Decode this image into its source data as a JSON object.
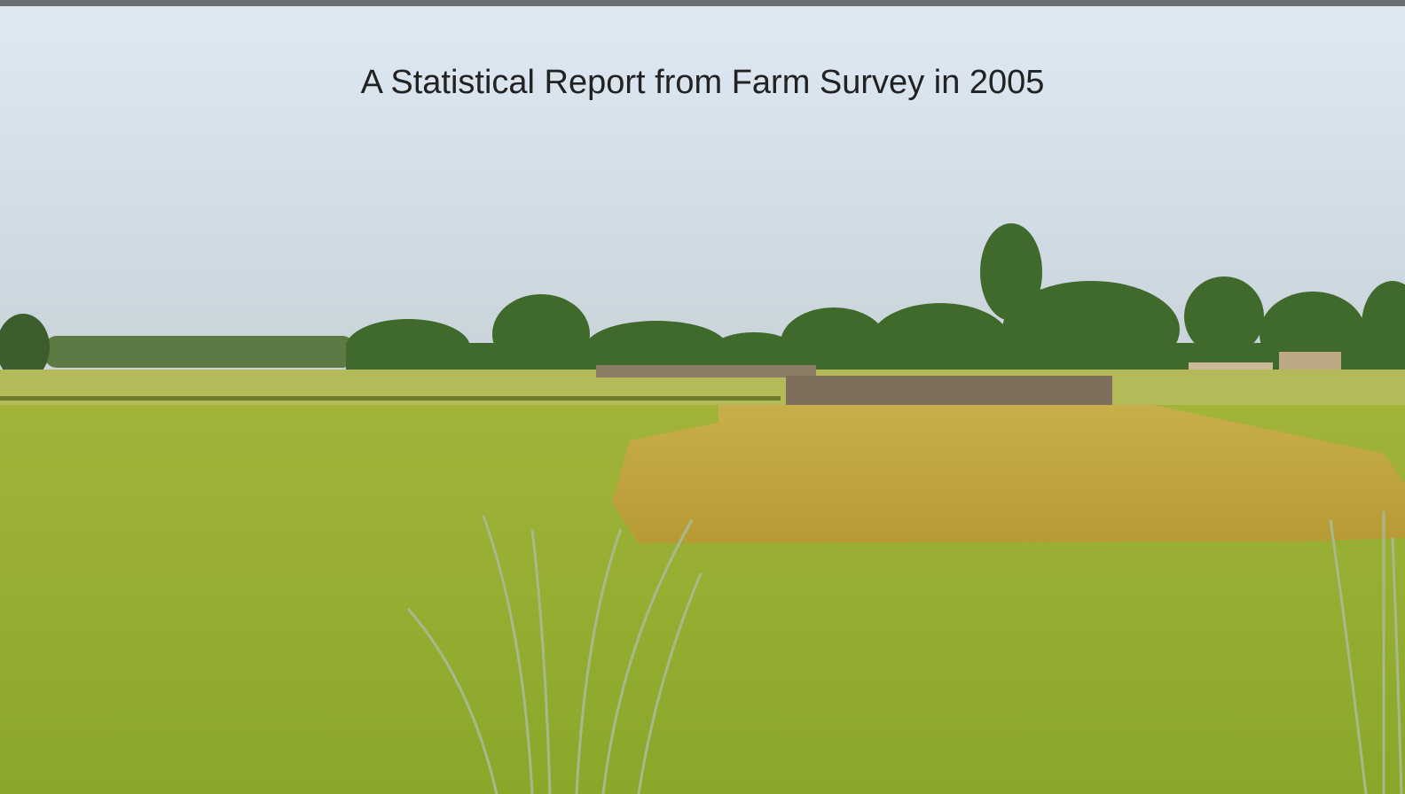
{
  "title": "A Statistical Report from Farm Survey in 2005"
}
